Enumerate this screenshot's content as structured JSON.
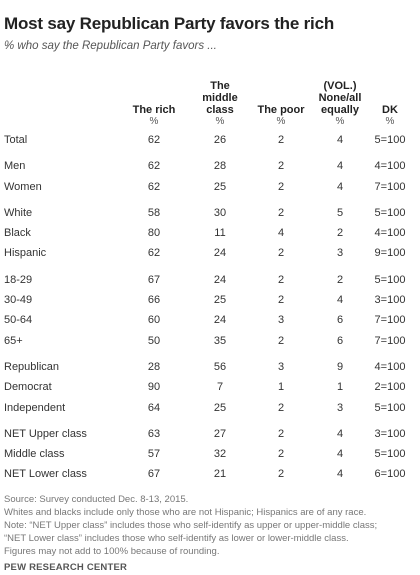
{
  "title": "Most say Republican Party favors the rich",
  "subtitle": "% who say the Republican Party favors ...",
  "chart_data": {
    "type": "table",
    "columns": [
      {
        "label": "The rich"
      },
      {
        "label": "The middle class"
      },
      {
        "label": "The poor"
      },
      {
        "label": "(VOL.) None/all equally"
      },
      {
        "label": "DK"
      }
    ],
    "unit_row": [
      "%",
      "%",
      "%",
      "%",
      "%"
    ],
    "groups": [
      [
        {
          "label": "Total",
          "values": [
            "62",
            "26",
            "2",
            "4",
            "5=100"
          ]
        }
      ],
      [
        {
          "label": "Men",
          "values": [
            "62",
            "28",
            "2",
            "4",
            "4=100"
          ]
        },
        {
          "label": "Women",
          "values": [
            "62",
            "25",
            "2",
            "4",
            "7=100"
          ]
        }
      ],
      [
        {
          "label": "White",
          "values": [
            "58",
            "30",
            "2",
            "5",
            "5=100"
          ]
        },
        {
          "label": "Black",
          "values": [
            "80",
            "11",
            "4",
            "2",
            "4=100"
          ]
        },
        {
          "label": "Hispanic",
          "values": [
            "62",
            "24",
            "2",
            "3",
            "9=100"
          ]
        }
      ],
      [
        {
          "label": "18-29",
          "values": [
            "67",
            "24",
            "2",
            "2",
            "5=100"
          ]
        },
        {
          "label": "30-49",
          "values": [
            "66",
            "25",
            "2",
            "4",
            "3=100"
          ]
        },
        {
          "label": "50-64",
          "values": [
            "60",
            "24",
            "3",
            "6",
            "7=100"
          ]
        },
        {
          "label": "65+",
          "values": [
            "50",
            "35",
            "2",
            "6",
            "7=100"
          ]
        }
      ],
      [
        {
          "label": "Republican",
          "values": [
            "28",
            "56",
            "3",
            "9",
            "4=100"
          ]
        },
        {
          "label": "Democrat",
          "values": [
            "90",
            "7",
            "1",
            "1",
            "2=100"
          ]
        },
        {
          "label": "Independent",
          "values": [
            "64",
            "25",
            "2",
            "3",
            "5=100"
          ]
        }
      ],
      [
        {
          "label": "NET Upper class",
          "values": [
            "63",
            "27",
            "2",
            "4",
            "3=100"
          ]
        },
        {
          "label": "Middle class",
          "values": [
            "57",
            "32",
            "2",
            "4",
            "5=100"
          ]
        },
        {
          "label": "NET Lower class",
          "values": [
            "67",
            "21",
            "2",
            "4",
            "6=100"
          ]
        }
      ]
    ]
  },
  "notes": [
    "Source: Survey conducted Dec. 8-13, 2015.",
    "Whites and blacks include only those who are not Hispanic; Hispanics are of any race.",
    "Note: “NET Upper class” includes those who self-identify as upper or upper-middle class;",
    "“NET Lower class” includes those who self-identify as lower or lower-middle class.",
    "Figures may not add to 100% because of rounding."
  ],
  "source_org": "PEW RESEARCH CENTER"
}
